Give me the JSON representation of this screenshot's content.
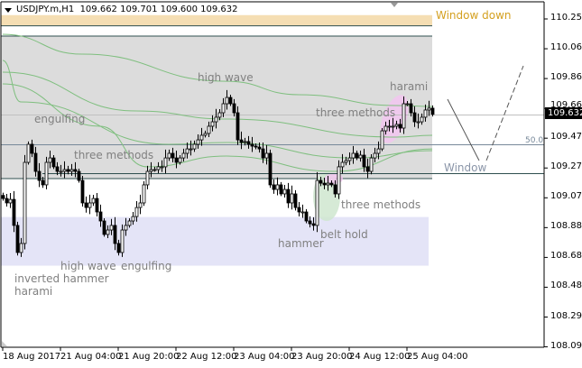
{
  "header": {
    "symbol": "USDJPY.m,H1",
    "ohlc": "109.662 109.701 109.600 109.632"
  },
  "chart_data": {
    "type": "candlestick",
    "timeframe": "H1",
    "ylim": [
      108.095,
      110.33
    ],
    "y_ticks": [
      "110.255",
      "110.060",
      "109.860",
      "109.665",
      "109.470",
      "109.275",
      "109.075",
      "108.880",
      "108.685",
      "108.485",
      "108.290",
      "108.095"
    ],
    "x_tick_labels": [
      "18 Aug 2017",
      "21 Aug 04:00",
      "21 Aug 20:00",
      "22 Aug 12:00",
      "23 Aug 04:00",
      "23 Aug 20:00",
      "24 Aug 12:00",
      "25 Aug 04:00"
    ],
    "x_tick_bar_index": [
      0,
      16,
      32,
      48,
      64,
      80,
      96,
      112
    ],
    "current_price": "109.632",
    "closes": [
      109.082,
      109.053,
      109.076,
      108.906,
      108.729,
      108.788,
      109.318,
      109.436,
      109.377,
      109.259,
      109.2,
      109.171,
      109.318,
      109.347,
      109.289,
      109.259,
      109.259,
      109.271,
      109.259,
      109.271,
      109.259,
      109.2,
      109.053,
      109.023,
      109.053,
      109.082,
      108.994,
      108.935,
      108.847,
      108.876,
      108.906,
      108.788,
      108.729,
      108.876,
      108.906,
      108.935,
      108.964,
      109.023,
      109.053,
      109.171,
      109.259,
      109.271,
      109.271,
      109.289,
      109.289,
      109.347,
      109.377,
      109.347,
      109.318,
      109.347,
      109.377,
      109.406,
      109.406,
      109.436,
      109.465,
      109.495,
      109.507,
      109.554,
      109.583,
      109.613,
      109.642,
      109.701,
      109.742,
      109.701,
      109.642,
      109.465,
      109.448,
      109.454,
      109.436,
      109.424,
      109.418,
      109.406,
      109.347,
      109.377,
      109.171,
      109.141,
      109.171,
      109.112,
      109.141,
      109.053,
      109.112,
      109.023,
      108.994,
      108.994,
      108.935,
      108.917,
      108.906,
      109.2,
      109.182,
      109.171,
      109.182,
      109.171,
      109.112,
      109.289,
      109.318,
      109.33,
      109.347,
      109.377,
      109.347,
      109.365,
      109.289,
      109.259,
      109.347,
      109.377,
      109.406,
      109.524,
      109.554,
      109.554,
      109.554,
      109.566,
      109.542,
      109.701,
      109.701,
      109.642,
      109.583,
      109.583,
      109.613,
      109.66,
      109.672,
      109.632
    ],
    "moving_averages": [
      {
        "points": [
          [
            0,
            110.155
          ],
          [
            22,
            110.025
          ],
          [
            62,
            109.848
          ],
          [
            82,
            109.76
          ],
          [
            109,
            109.689
          ],
          [
            119,
            109.683
          ]
        ]
      },
      {
        "points": [
          [
            0,
            109.907
          ],
          [
            37,
            109.654
          ],
          [
            62,
            109.601
          ],
          [
            109,
            109.483
          ],
          [
            119,
            109.495
          ]
        ]
      },
      {
        "points": [
          [
            0,
            109.984
          ],
          [
            5,
            109.713
          ],
          [
            46,
            109.436
          ],
          [
            62,
            109.448
          ],
          [
            97,
            109.347
          ],
          [
            119,
            109.395
          ]
        ]
      },
      {
        "points": [
          [
            0,
            109.831
          ],
          [
            27,
            109.554
          ],
          [
            40,
            109.289
          ],
          [
            62,
            109.359
          ],
          [
            92,
            109.259
          ],
          [
            119,
            109.406
          ]
        ]
      }
    ],
    "zones": [
      {
        "name": "window-down-zone",
        "from": 110.21,
        "to": 110.28,
        "color": "#f5deb3"
      },
      {
        "name": "gray-zone",
        "from": 109.212,
        "to": 110.143,
        "color": "#dcdcdc"
      },
      {
        "name": "lavender-zone",
        "from": 108.643,
        "to": 108.961,
        "color": "#e4e4f7"
      }
    ],
    "levels": [
      {
        "name": "bid-line",
        "price": 109.632,
        "color": "#c0c0c0"
      },
      {
        "name": "fib-50-line",
        "price": 109.436,
        "color": "#778899",
        "label": "50.0"
      },
      {
        "name": "support-line",
        "price": 109.247,
        "color": "#2f4f4f",
        "from_bar": 11
      }
    ],
    "annotations": {
      "engulfing_1": "engulfing",
      "three_methods_1": "three methods",
      "high_wave_1": "high wave",
      "three_methods_2": "three methods",
      "harami_1": "harami",
      "three_methods_3": "three methods",
      "belt_hold": "belt hold",
      "hammer": "hammer",
      "high_wave_2": "high wave",
      "engulfing_2": "engulfing",
      "inverted_hammer": "inverted hammer",
      "harami_2": "harami",
      "window": "Window",
      "window_down": "Window down"
    },
    "colors": {
      "bull_body": "#ffffff",
      "bear_body": "#000000",
      "ma": "#7fbf7f",
      "window_down_text": "#d4a020",
      "window_text": "#8a95a8",
      "annotation_text": "#808080"
    }
  }
}
